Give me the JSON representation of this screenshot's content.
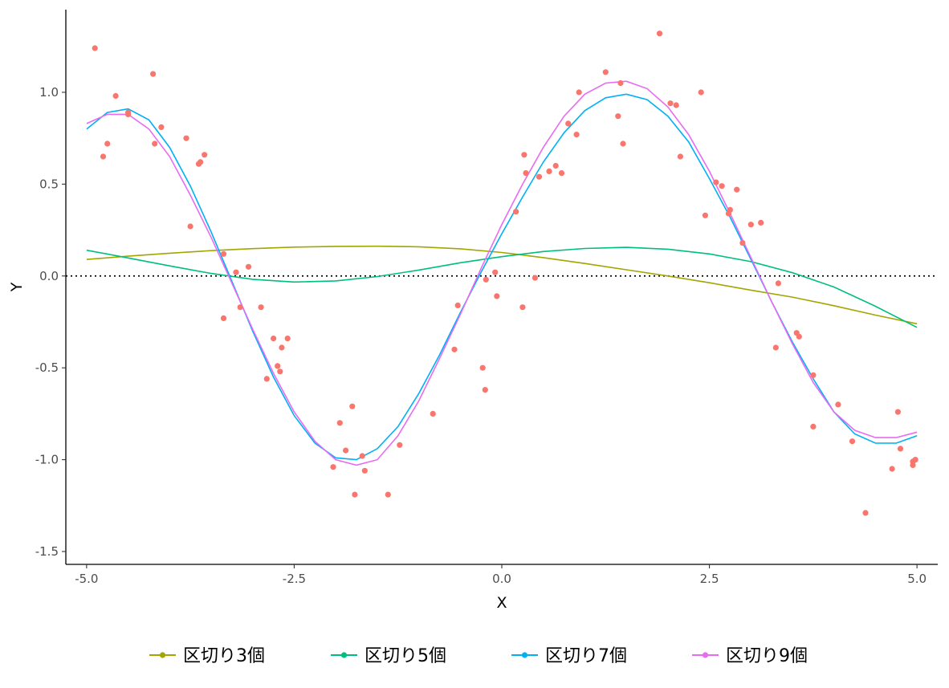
{
  "chart_data": {
    "type": "line",
    "title": "",
    "xlabel": "X",
    "ylabel": "Y",
    "xlim": [
      -5.25,
      5.25
    ],
    "ylim": [
      -1.57,
      1.45
    ],
    "xticks": [
      -5.0,
      -2.5,
      0.0,
      2.5,
      5.0
    ],
    "xtick_labels": [
      "-5.0",
      "-2.5",
      "0.0",
      "2.5",
      "5.0"
    ],
    "yticks": [
      -1.5,
      -1.0,
      -0.5,
      0.0,
      0.5,
      1.0
    ],
    "ytick_labels": [
      "-1.5",
      "-1.0",
      "-0.5",
      "0.0",
      "0.5",
      "1.0"
    ],
    "grid": false,
    "reference_line": {
      "y": 0,
      "style": "dotted",
      "color": "#000000"
    },
    "legend_position": "bottom",
    "scatter": {
      "color": "#F8766D",
      "points": [
        [
          -4.9,
          1.24
        ],
        [
          -4.8,
          0.65
        ],
        [
          -4.75,
          0.72
        ],
        [
          -4.65,
          0.98
        ],
        [
          -4.5,
          0.89
        ],
        [
          -4.5,
          0.88
        ],
        [
          -4.2,
          1.1
        ],
        [
          -4.18,
          0.72
        ],
        [
          -4.1,
          0.81
        ],
        [
          -3.8,
          0.75
        ],
        [
          -3.75,
          0.27
        ],
        [
          -3.65,
          0.61
        ],
        [
          -3.63,
          0.62
        ],
        [
          -3.58,
          0.66
        ],
        [
          -3.35,
          0.12
        ],
        [
          -3.35,
          -0.23
        ],
        [
          -3.2,
          0.02
        ],
        [
          -3.15,
          -0.17
        ],
        [
          -3.05,
          0.05
        ],
        [
          -2.9,
          -0.17
        ],
        [
          -2.83,
          -0.56
        ],
        [
          -2.75,
          -0.34
        ],
        [
          -2.7,
          -0.49
        ],
        [
          -2.67,
          -0.52
        ],
        [
          -2.65,
          -0.39
        ],
        [
          -2.58,
          -0.34
        ],
        [
          -2.03,
          -1.04
        ],
        [
          -1.95,
          -0.8
        ],
        [
          -1.88,
          -0.95
        ],
        [
          -1.8,
          -0.71
        ],
        [
          -1.77,
          -1.19
        ],
        [
          -1.68,
          -0.98
        ],
        [
          -1.65,
          -1.06
        ],
        [
          -1.37,
          -1.19
        ],
        [
          -1.23,
          -0.92
        ],
        [
          -0.83,
          -0.75
        ],
        [
          -0.57,
          -0.4
        ],
        [
          -0.53,
          -0.16
        ],
        [
          -0.23,
          -0.5
        ],
        [
          -0.2,
          -0.62
        ],
        [
          -0.19,
          -0.02
        ],
        [
          -0.08,
          0.02
        ],
        [
          -0.06,
          -0.11
        ],
        [
          0.17,
          0.35
        ],
        [
          0.25,
          -0.17
        ],
        [
          0.27,
          0.66
        ],
        [
          0.29,
          0.56
        ],
        [
          0.4,
          -0.01
        ],
        [
          0.45,
          0.54
        ],
        [
          0.57,
          0.57
        ],
        [
          0.65,
          0.6
        ],
        [
          0.72,
          0.56
        ],
        [
          0.8,
          0.83
        ],
        [
          0.9,
          0.77
        ],
        [
          0.93,
          1.0
        ],
        [
          1.25,
          1.11
        ],
        [
          1.4,
          0.87
        ],
        [
          1.43,
          1.05
        ],
        [
          1.46,
          0.72
        ],
        [
          1.9,
          1.32
        ],
        [
          2.03,
          0.94
        ],
        [
          2.1,
          0.93
        ],
        [
          2.15,
          0.65
        ],
        [
          2.4,
          1.0
        ],
        [
          2.45,
          0.33
        ],
        [
          2.58,
          0.51
        ],
        [
          2.65,
          0.49
        ],
        [
          2.73,
          0.34
        ],
        [
          2.75,
          0.36
        ],
        [
          2.83,
          0.47
        ],
        [
          2.9,
          0.18
        ],
        [
          3.0,
          0.28
        ],
        [
          3.12,
          0.29
        ],
        [
          3.3,
          -0.39
        ],
        [
          3.33,
          -0.04
        ],
        [
          3.55,
          -0.31
        ],
        [
          3.58,
          -0.33
        ],
        [
          3.75,
          -0.54
        ],
        [
          3.75,
          -0.82
        ],
        [
          4.05,
          -0.7
        ],
        [
          4.22,
          -0.9
        ],
        [
          4.38,
          -1.29
        ],
        [
          4.7,
          -1.05
        ],
        [
          4.77,
          -0.74
        ],
        [
          4.8,
          -0.94
        ],
        [
          4.95,
          -1.03
        ],
        [
          4.95,
          -1.01
        ],
        [
          4.98,
          -1.0
        ]
      ]
    },
    "series": [
      {
        "name": "区切り3個",
        "color": "#A3A500",
        "x": [
          -5.0,
          -4.5,
          -4.0,
          -3.5,
          -3.0,
          -2.5,
          -2.0,
          -1.5,
          -1.0,
          -0.5,
          0.0,
          0.5,
          1.0,
          1.5,
          2.0,
          2.5,
          3.0,
          3.5,
          4.0,
          4.5,
          5.0
        ],
        "y": [
          0.09,
          0.108,
          0.124,
          0.138,
          0.149,
          0.157,
          0.161,
          0.162,
          0.159,
          0.148,
          0.128,
          0.1,
          0.068,
          0.034,
          0.0,
          -0.037,
          -0.077,
          -0.115,
          -0.162,
          -0.213,
          -0.26
        ]
      },
      {
        "name": "区切り5個",
        "color": "#00BF7D",
        "x": [
          -5.0,
          -4.5,
          -4.0,
          -3.5,
          -3.0,
          -2.5,
          -2.0,
          -1.5,
          -1.0,
          -0.5,
          0.0,
          0.5,
          1.0,
          1.5,
          2.0,
          2.5,
          3.0,
          3.5,
          4.0,
          4.5,
          5.0
        ],
        "y": [
          0.14,
          0.098,
          0.055,
          0.014,
          -0.018,
          -0.033,
          -0.027,
          -0.003,
          0.032,
          0.072,
          0.105,
          0.133,
          0.15,
          0.156,
          0.146,
          0.12,
          0.078,
          0.018,
          -0.06,
          -0.165,
          -0.28
        ]
      },
      {
        "name": "区切り7個",
        "color": "#00B0F6",
        "x": [
          -5.0,
          -4.75,
          -4.5,
          -4.25,
          -4.0,
          -3.75,
          -3.5,
          -3.25,
          -3.0,
          -2.75,
          -2.5,
          -2.25,
          -2.0,
          -1.75,
          -1.5,
          -1.25,
          -1.0,
          -0.75,
          -0.5,
          -0.25,
          0.0,
          0.25,
          0.5,
          0.75,
          1.0,
          1.25,
          1.5,
          1.75,
          2.0,
          2.25,
          2.5,
          2.75,
          3.0,
          3.25,
          3.5,
          3.75,
          4.0,
          4.25,
          4.5,
          4.75,
          5.0
        ],
        "y": [
          0.8,
          0.89,
          0.91,
          0.85,
          0.7,
          0.49,
          0.24,
          -0.03,
          -0.3,
          -0.55,
          -0.76,
          -0.91,
          -0.99,
          -1.0,
          -0.94,
          -0.82,
          -0.64,
          -0.43,
          -0.2,
          0.02,
          0.23,
          0.43,
          0.62,
          0.78,
          0.9,
          0.97,
          0.99,
          0.96,
          0.87,
          0.73,
          0.53,
          0.32,
          0.09,
          -0.14,
          -0.36,
          -0.56,
          -0.74,
          -0.86,
          -0.91,
          -0.91,
          -0.87
        ]
      },
      {
        "name": "区切り9個",
        "color": "#E76BF3",
        "x": [
          -5.0,
          -4.75,
          -4.5,
          -4.25,
          -4.0,
          -3.75,
          -3.5,
          -3.25,
          -3.0,
          -2.75,
          -2.5,
          -2.25,
          -2.0,
          -1.75,
          -1.5,
          -1.25,
          -1.0,
          -0.75,
          -0.5,
          -0.25,
          0.0,
          0.25,
          0.5,
          0.75,
          1.0,
          1.25,
          1.5,
          1.75,
          2.0,
          2.25,
          2.5,
          2.75,
          3.0,
          3.25,
          3.5,
          3.75,
          4.0,
          4.25,
          4.5,
          4.75,
          5.0
        ],
        "y": [
          0.83,
          0.88,
          0.88,
          0.8,
          0.65,
          0.44,
          0.21,
          -0.04,
          -0.29,
          -0.53,
          -0.74,
          -0.9,
          -1.0,
          -1.03,
          -1.0,
          -0.87,
          -0.68,
          -0.45,
          -0.21,
          0.04,
          0.28,
          0.5,
          0.7,
          0.87,
          0.99,
          1.05,
          1.06,
          1.02,
          0.92,
          0.77,
          0.57,
          0.34,
          0.1,
          -0.14,
          -0.37,
          -0.58,
          -0.74,
          -0.84,
          -0.88,
          -0.88,
          -0.85
        ]
      }
    ]
  }
}
